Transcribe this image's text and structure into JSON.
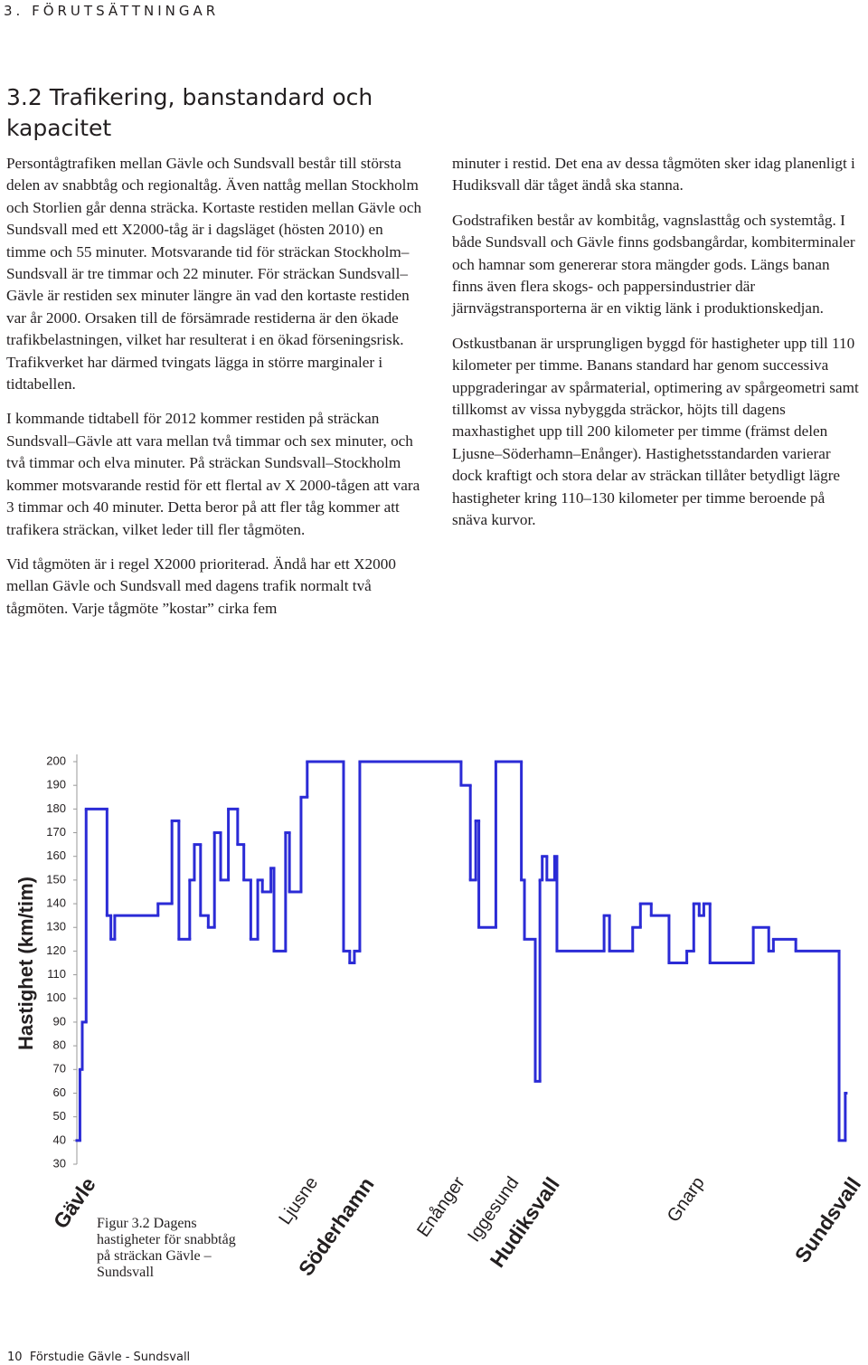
{
  "header": {
    "section": "3. FÖRUTSÄTTNINGAR"
  },
  "heading": "3.2 Trafikering, banstandard och kapacitet",
  "left_paragraphs": [
    "Persontågtrafiken mellan Gävle och Sundsvall består till största delen av snabbtåg och regionaltåg. Även nattåg mellan Stockholm och Storlien går denna sträcka. Kortaste restiden mellan Gävle och Sundsvall med ett X2000-tåg är i dagsläget (hösten 2010) en timme och 55 minuter. Motsvarande tid för sträckan Stockholm–Sundsvall är tre timmar och 22 minuter. För sträckan Sundsvall–Gävle är restiden sex minuter längre än vad den kortaste restiden var år 2000. Orsaken till de försämrade restiderna är den ökade trafikbelastningen, vilket har resulterat i en ökad förseningsrisk. Trafikverket har därmed tvingats lägga in större marginaler i tidtabellen.",
    "I kommande tidtabell för 2012 kommer restiden på sträckan Sundsvall–Gävle att vara mellan två timmar och sex minuter, och två timmar och elva minuter. På sträckan Sundsvall–Stockholm kommer motsvarande restid för ett flertal av X 2000-tågen att vara 3 timmar och 40 minuter. Detta beror på att fler tåg kommer att trafikera sträckan, vilket leder till fler tågmöten.",
    "Vid tågmöten är i regel X2000 prioriterad. Ändå har ett X2000 mellan Gävle och Sundsvall med dagens trafik normalt två tågmöten. Varje tågmöte ”kostar” cirka fem"
  ],
  "right_paragraphs": [
    "minuter i restid. Det ena av dessa tågmöten sker idag planenligt i Hudiksvall där tåget ändå ska stanna.",
    "Godstrafiken består av kombitåg, vagnslasttåg och systemtåg. I både Sundsvall och Gävle finns godsbangårdar, kombiterminaler och hamnar som genererar stora mängder gods. Längs banan finns även flera skogs- och pappersindustrier där järnvägstransporterna är en viktig länk i produktionskedjan.",
    "Ostkustbanan är ursprungligen byggd för hastigheter upp till 110 kilometer per timme. Banans standard har genom successiva uppgraderingar av spårmaterial, optimering av spårgeometri samt tillkomst av vissa nybyggda sträckor, höjts till dagens maxhastighet upp till 200 kilometer per timme (främst delen Ljusne–Söderhamn–Enånger). Hastighetsstandarden varierar dock kraftigt och stora delar av sträckan tillåter betydligt lägre hastigheter kring 110–130 kilometer per timme beroende på snäva kurvor."
  ],
  "chart_data": {
    "type": "step",
    "y_label": "Hastighet (km/tim)",
    "color": "#2b2bd6",
    "xlim": [
      0,
      100
    ],
    "ylim": [
      30,
      200
    ],
    "yticks": [
      30,
      40,
      50,
      60,
      70,
      80,
      90,
      100,
      110,
      120,
      130,
      140,
      150,
      160,
      170,
      180,
      190,
      200
    ],
    "x": [
      0,
      0.4,
      0.7,
      1.2,
      3.9,
      4.4,
      4.9,
      10.5,
      12.3,
      13.2,
      14.6,
      15.2,
      16.0,
      17.0,
      17.8,
      18.6,
      19.6,
      20.8,
      21.6,
      22.5,
      23.4,
      24.0,
      25.1,
      25.5,
      27.0,
      27.5,
      29.0,
      29.8,
      34.5,
      35.3,
      35.9,
      36.6,
      49.7,
      50.9,
      51.6,
      52.0,
      54.2,
      57.5,
      57.9,
      59.3,
      59.9,
      60.2,
      60.8,
      61.8,
      62.1,
      68.2,
      68.9,
      71.9,
      72.9,
      74.3,
      76.6,
      78.9,
      79.8,
      80.5,
      81.1,
      81.9,
      87.5,
      89.5,
      90.1,
      93.0,
      98.6,
      99.4
    ],
    "values": [
      40,
      70,
      90,
      180,
      135,
      125,
      135,
      140,
      175,
      125,
      150,
      165,
      135,
      130,
      170,
      150,
      180,
      165,
      150,
      125,
      150,
      145,
      155,
      120,
      170,
      145,
      185,
      200,
      120,
      115,
      120,
      200,
      190,
      150,
      175,
      130,
      200,
      150,
      125,
      65,
      150,
      160,
      150,
      160,
      120,
      135,
      120,
      130,
      140,
      135,
      115,
      120,
      140,
      135,
      140,
      115,
      130,
      120,
      125,
      120,
      40,
      60
    ],
    "stations": [
      {
        "label": "Gävle",
        "x": 0,
        "bold": true
      },
      {
        "label": "Ljusne",
        "x": 29,
        "bold": false
      },
      {
        "label": "Söderhamn",
        "x": 36,
        "bold": true
      },
      {
        "label": "Enånger",
        "x": 48,
        "bold": false
      },
      {
        "label": "Iggesund",
        "x": 55,
        "bold": false
      },
      {
        "label": "Hudiksvall",
        "x": 60,
        "bold": true
      },
      {
        "label": "Gnarp",
        "x": 79,
        "bold": false
      },
      {
        "label": "Sundsvall",
        "x": 99,
        "bold": true
      }
    ]
  },
  "caption": "Figur 3.2 Dagens hastigheter för snabbtåg på sträckan Gävle – Sundsvall",
  "footer": {
    "page": "10",
    "title": "Förstudie Gävle - Sundsvall"
  }
}
